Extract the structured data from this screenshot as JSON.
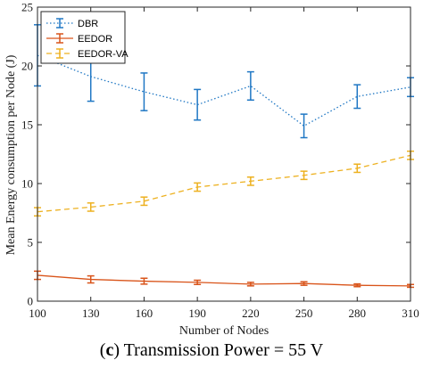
{
  "caption": {
    "letter": "c",
    "rest": " Transmission Power = 55 V"
  },
  "chart_data": {
    "type": "line",
    "xlabel": "Number of Nodes",
    "ylabel": "Mean Energy consumption per Node (J)",
    "x": [
      100,
      130,
      160,
      190,
      220,
      250,
      280,
      310
    ],
    "xlim": [
      100,
      310
    ],
    "ylim": [
      0,
      25
    ],
    "xticks": [
      100,
      130,
      160,
      190,
      220,
      250,
      280,
      310
    ],
    "yticks": [
      0,
      5,
      10,
      15,
      20,
      25
    ],
    "grid": false,
    "legend_position": "top-left",
    "series": [
      {
        "name": "DBR",
        "color": "#1f77c4",
        "style": "dotted",
        "values": [
          20.9,
          19.1,
          17.8,
          16.7,
          18.3,
          14.9,
          17.4,
          18.2
        ],
        "errors": [
          2.6,
          2.1,
          1.6,
          1.3,
          1.2,
          1.0,
          1.0,
          0.8
        ]
      },
      {
        "name": "EEDOR",
        "color": "#d9541a",
        "style": "solid",
        "values": [
          2.2,
          1.85,
          1.7,
          1.6,
          1.45,
          1.5,
          1.35,
          1.3
        ],
        "errors": [
          0.35,
          0.3,
          0.25,
          0.18,
          0.15,
          0.15,
          0.12,
          0.12
        ]
      },
      {
        "name": "EEDOR-VA",
        "color": "#edb120",
        "style": "dashed",
        "values": [
          7.6,
          8.0,
          8.5,
          9.7,
          10.2,
          10.7,
          11.3,
          12.4
        ],
        "errors": [
          0.35,
          0.35,
          0.35,
          0.35,
          0.35,
          0.35,
          0.35,
          0.35
        ]
      }
    ]
  }
}
